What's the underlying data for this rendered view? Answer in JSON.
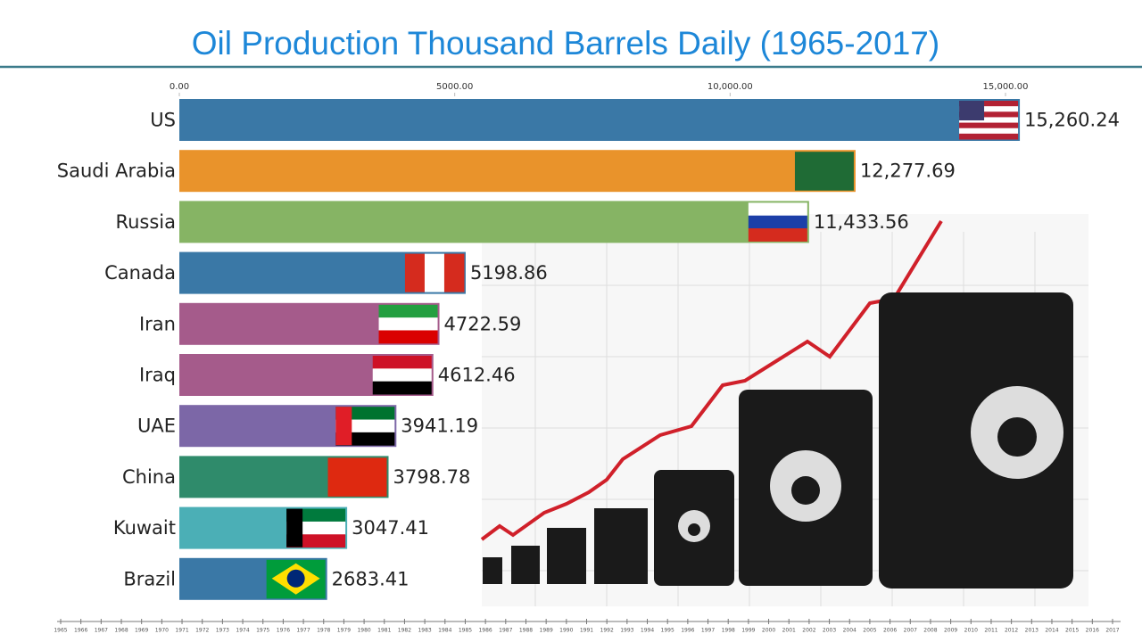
{
  "chart_data": {
    "type": "bar",
    "orientation": "horizontal",
    "title": "Oil Production Thousand Barrels Daily (1965-2017)",
    "categories": [
      "US",
      "Saudi Arabia",
      "Russia",
      "Canada",
      "Iran",
      "Iraq",
      "UAE",
      "China",
      "Kuwait",
      "Brazil"
    ],
    "values": [
      15260.24,
      12277.69,
      11433.56,
      5198.86,
      4722.59,
      4612.46,
      3941.19,
      3798.78,
      3047.41,
      2683.41
    ],
    "value_labels": [
      "15,260.24",
      "12,277.69",
      "11,433.56",
      "5198.86",
      "4722.59",
      "4612.46",
      "3941.19",
      "3798.78",
      "3047.41",
      "2683.41"
    ],
    "colors": [
      "#3a78a6",
      "#e9932b",
      "#86b464",
      "#3a78a6",
      "#a55b8b",
      "#a55b8b",
      "#7c67a7",
      "#2f8b6b",
      "#4bafb6",
      "#3a78a6"
    ],
    "xlim": [
      0,
      15000
    ],
    "xticks": [
      {
        "value": 0,
        "label": "0.00"
      },
      {
        "value": 5000,
        "label": "5000.00"
      },
      {
        "value": 10000,
        "label": "10,000.00"
      },
      {
        "value": 15000,
        "label": "15,000.00"
      }
    ],
    "timeline": [
      "1965",
      "1966",
      "1967",
      "1968",
      "1969",
      "1970",
      "1971",
      "1972",
      "1973",
      "1974",
      "1975",
      "1976",
      "1977",
      "1978",
      "1979",
      "1980",
      "1981",
      "1982",
      "1983",
      "1984",
      "1985",
      "1986",
      "1987",
      "1988",
      "1989",
      "1990",
      "1991",
      "1992",
      "1993",
      "1994",
      "1995",
      "1996",
      "1997",
      "1998",
      "1999",
      "2000",
      "2001",
      "2002",
      "2003",
      "2004",
      "2005",
      "2006",
      "2007",
      "2008",
      "2009",
      "2010",
      "2011",
      "2012",
      "2013",
      "2014",
      "2015",
      "2016",
      "2017"
    ]
  }
}
